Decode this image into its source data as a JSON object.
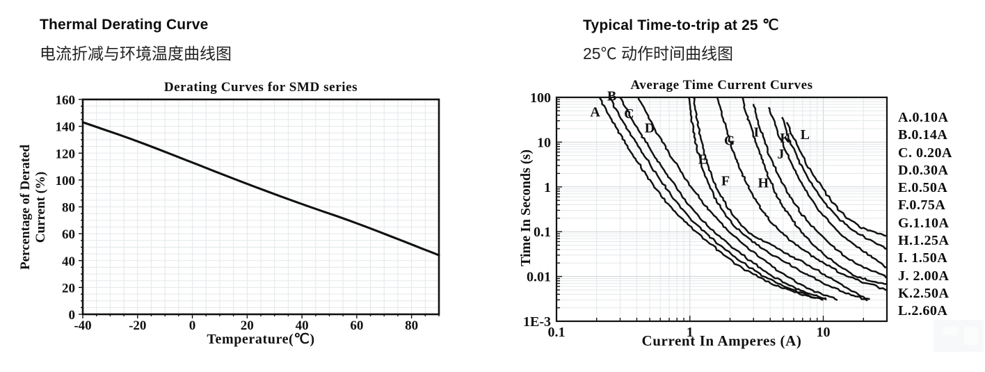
{
  "page": {
    "bg": "#ffffff",
    "watermark_icon": "faint-logo-watermark"
  },
  "colors": {
    "ink": "#111111",
    "grid_minor": "#e3e7e9",
    "grid_major": "#cdd3d7",
    "text": "#111111"
  },
  "left_panel": {
    "title": "Thermal Derating Curve",
    "subtitle_zh": "电流折减与环境温度曲线图"
  },
  "right_panel": {
    "title": "Typical Time-to-trip at 25 ℃",
    "subtitle_zh": "25℃ 动作时间曲线图"
  },
  "chart_data": [
    {
      "type": "line",
      "scale": "linear",
      "title": "Derating Curves for SMD series",
      "xlabel": "Temperature(℃)",
      "ylabel": "Percentage of Derated Current (%)",
      "ylabel_lines": [
        "Percentage of Derated",
        "Current (%)"
      ],
      "xlim": [
        -40,
        90
      ],
      "ylim": [
        0,
        160
      ],
      "xticks": [
        -40,
        -20,
        0,
        20,
        40,
        60,
        80
      ],
      "yticks": [
        0,
        20,
        40,
        60,
        80,
        100,
        120,
        140,
        160
      ],
      "minor_step_x": 5,
      "minor_step_y": 5,
      "grid": true,
      "legend_position": "none",
      "series": [
        {
          "name": "derating-line",
          "points": [
            [
              -40,
              143
            ],
            [
              -20,
              129
            ],
            [
              0,
              113
            ],
            [
              20,
              97
            ],
            [
              40,
              82
            ],
            [
              60,
              68
            ],
            [
              80,
              52
            ],
            [
              90,
              44
            ]
          ]
        }
      ]
    },
    {
      "type": "line",
      "scale": "log-log",
      "title": "Average Time Current Curves",
      "xlabel": "Current In Amperes (A)",
      "ylabel": "Time In Seconds (s)",
      "xlim": [
        0.1,
        30
      ],
      "ylim": [
        0.001,
        100
      ],
      "xtick_labels": [
        "0.1",
        "1",
        "10"
      ],
      "xtick_values": [
        0.1,
        1,
        10
      ],
      "ytick_labels": [
        "100",
        "10",
        "1",
        "0.1",
        "0.01",
        "1E-3"
      ],
      "ytick_values": [
        100,
        10,
        1,
        0.1,
        0.01,
        0.001
      ],
      "grid": true,
      "legend_position": "right-outside",
      "legend": [
        "A.0.10A",
        "B.0.14A",
        "C. 0.20A",
        "D.0.30A",
        "E.0.50A",
        "F.0.75A",
        "G.1.10A",
        "H.1.25A",
        "I. 1.50A",
        "J. 2.00A",
        "K.2.50A",
        "L.2.60A"
      ],
      "series": [
        {
          "name": "A",
          "rating": "0.10A",
          "label_i": 0.195,
          "label_t": 48,
          "points": [
            [
              0.21,
              100
            ],
            [
              0.26,
              30
            ],
            [
              0.34,
              8
            ],
            [
              0.46,
              2
            ],
            [
              0.63,
              0.55
            ],
            [
              0.92,
              0.16
            ],
            [
              1.45,
              0.05
            ],
            [
              2.3,
              0.017
            ],
            [
              4.0,
              0.007
            ],
            [
              6.5,
              0.0042
            ],
            [
              8.8,
              0.0032
            ]
          ]
        },
        {
          "name": "B",
          "rating": "0.14A",
          "label_i": 0.26,
          "label_t": 110,
          "points": [
            [
              0.25,
              100
            ],
            [
              0.31,
              30
            ],
            [
              0.41,
              8
            ],
            [
              0.56,
              2
            ],
            [
              0.77,
              0.5
            ],
            [
              1.12,
              0.14
            ],
            [
              1.75,
              0.045
            ],
            [
              2.85,
              0.015
            ],
            [
              4.9,
              0.006
            ],
            [
              7.6,
              0.0038
            ],
            [
              10.0,
              0.003
            ]
          ]
        },
        {
          "name": "C",
          "rating": "0.20A",
          "label_i": 0.35,
          "label_t": 44,
          "points": [
            [
              0.3,
              100
            ],
            [
              0.38,
              28
            ],
            [
              0.5,
              7
            ],
            [
              0.68,
              1.8
            ],
            [
              0.95,
              0.45
            ],
            [
              1.4,
              0.12
            ],
            [
              2.2,
              0.04
            ],
            [
              3.6,
              0.013
            ],
            [
              6.0,
              0.0055
            ],
            [
              9.2,
              0.0036
            ],
            [
              10.6,
              0.0031
            ]
          ]
        },
        {
          "name": "D",
          "rating": "0.30A",
          "label_i": 0.5,
          "label_t": 21,
          "points": [
            [
              0.41,
              100
            ],
            [
              0.52,
              25
            ],
            [
              0.69,
              6
            ],
            [
              0.93,
              1.5
            ],
            [
              1.3,
              0.38
            ],
            [
              1.95,
              0.1
            ],
            [
              3.0,
              0.033
            ],
            [
              5.0,
              0.011
            ],
            [
              8.0,
              0.005
            ],
            [
              11.2,
              0.0035
            ],
            [
              12.6,
              0.0031
            ]
          ]
        },
        {
          "name": "E",
          "rating": "0.50A",
          "label_i": 1.25,
          "label_t": 4.2,
          "points": [
            [
              0.98,
              100
            ],
            [
              1.05,
              20
            ],
            [
              1.16,
              5
            ],
            [
              1.32,
              1.5
            ],
            [
              1.62,
              0.4
            ],
            [
              2.2,
              0.12
            ],
            [
              3.2,
              0.05
            ],
            [
              5.0,
              0.022
            ],
            [
              8.0,
              0.01
            ],
            [
              13.0,
              0.005
            ],
            [
              18.5,
              0.0034
            ],
            [
              21.5,
              0.003
            ]
          ]
        },
        {
          "name": "F",
          "rating": "0.75A",
          "label_i": 1.85,
          "label_t": 1.4,
          "points": [
            [
              1.07,
              100
            ],
            [
              1.16,
              20
            ],
            [
              1.31,
              4
            ],
            [
              1.56,
              1.0
            ],
            [
              2.0,
              0.28
            ],
            [
              2.75,
              0.09
            ],
            [
              3.9,
              0.055
            ],
            [
              5.6,
              0.03
            ],
            [
              9.0,
              0.014
            ],
            [
              14.0,
              0.006
            ],
            [
              19.0,
              0.0038
            ],
            [
              22.0,
              0.003
            ]
          ]
        },
        {
          "name": "G",
          "rating": "1.10A",
          "label_i": 1.98,
          "label_t": 11,
          "points": [
            [
              1.62,
              100
            ],
            [
              1.86,
              20
            ],
            [
              2.12,
              6
            ],
            [
              2.55,
              1.5
            ],
            [
              3.25,
              0.4
            ],
            [
              4.4,
              0.12
            ],
            [
              6.5,
              0.045
            ],
            [
              10.0,
              0.02
            ],
            [
              15.0,
              0.01
            ],
            [
              22.0,
              0.0068
            ],
            [
              30.0,
              0.005
            ]
          ]
        },
        {
          "name": "H",
          "rating": "1.25A",
          "label_i": 3.55,
          "label_t": 1.25,
          "points": [
            [
              2.45,
              100
            ],
            [
              2.8,
              25
            ],
            [
              3.3,
              6
            ],
            [
              4.0,
              1.3
            ],
            [
              5.0,
              0.35
            ],
            [
              6.8,
              0.1
            ],
            [
              9.5,
              0.035
            ],
            [
              13.5,
              0.016
            ],
            [
              19.0,
              0.009
            ],
            [
              26.0,
              0.0075
            ],
            [
              30.0,
              0.0068
            ]
          ]
        },
        {
          "name": "I",
          "rating": "1.50A",
          "label_i": 3.15,
          "label_t": 17,
          "points": [
            [
              3.0,
              70
            ],
            [
              3.4,
              18
            ],
            [
              4.0,
              4.5
            ],
            [
              5.0,
              1.1
            ],
            [
              6.5,
              0.3
            ],
            [
              9.0,
              0.1
            ],
            [
              12.5,
              0.04
            ],
            [
              17.0,
              0.02
            ],
            [
              24.0,
              0.013
            ],
            [
              30.0,
              0.0095
            ]
          ]
        },
        {
          "name": "J",
          "rating": "2.00A",
          "label_i": 4.8,
          "label_t": 5.5,
          "points": [
            [
              3.9,
              60
            ],
            [
              4.5,
              18
            ],
            [
              5.4,
              5
            ],
            [
              6.7,
              1.4
            ],
            [
              8.6,
              0.4
            ],
            [
              11.5,
              0.14
            ],
            [
              16.0,
              0.06
            ],
            [
              22.0,
              0.03
            ],
            [
              28.0,
              0.018
            ],
            [
              30.0,
              0.016
            ]
          ]
        },
        {
          "name": "K",
          "rating": "2.50A",
          "label_i": 5.2,
          "label_t": 12.5,
          "points": [
            [
              4.9,
              35
            ],
            [
              5.5,
              12
            ],
            [
              6.5,
              4
            ],
            [
              8.1,
              1.2
            ],
            [
              10.5,
              0.4
            ],
            [
              14.0,
              0.16
            ],
            [
              19.0,
              0.085
            ],
            [
              25.0,
              0.055
            ],
            [
              30.0,
              0.042
            ]
          ]
        },
        {
          "name": "L",
          "rating": "2.60A",
          "label_i": 7.3,
          "label_t": 15,
          "points": [
            [
              5.3,
              28
            ],
            [
              6.3,
              9
            ],
            [
              7.7,
              2.8
            ],
            [
              9.9,
              0.9
            ],
            [
              13.0,
              0.3
            ],
            [
              17.5,
              0.14
            ],
            [
              23.5,
              0.1
            ],
            [
              30.0,
              0.08
            ]
          ]
        }
      ]
    }
  ]
}
